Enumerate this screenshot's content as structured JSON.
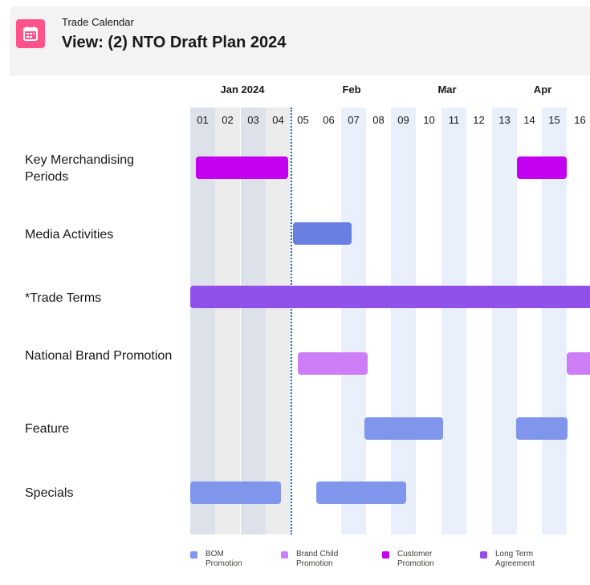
{
  "header": {
    "eyebrow": "Trade Calendar",
    "title": "View: (2) NTO Draft Plan 2024",
    "icon": "calendar-icon"
  },
  "timeline": {
    "months": [
      "Jan 2024",
      "Feb",
      "Mar",
      "Apr"
    ],
    "weeks": [
      "01",
      "02",
      "03",
      "04",
      "05",
      "06",
      "07",
      "08",
      "09",
      "10",
      "11",
      "12",
      "13",
      "14",
      "15",
      "16"
    ]
  },
  "rows": [
    {
      "label": "Key Merchandising Periods"
    },
    {
      "label": "Media Activities"
    },
    {
      "label": "*Trade Terms"
    },
    {
      "label": "National Brand Promotion"
    },
    {
      "label": "Feature"
    },
    {
      "label": "Specials"
    }
  ],
  "legend": [
    {
      "line1": "BOM",
      "line2": "Promotion",
      "color": "#7f96ec"
    },
    {
      "line1": "Brand Child",
      "line2": "Promotion",
      "color": "#cd7ef7"
    },
    {
      "line1": "Customer",
      "line2": "Promotion",
      "color": "#c400f0"
    },
    {
      "line1": "Long Term",
      "line2": "Agreement",
      "color": "#9050e9"
    }
  ],
  "colors": {
    "app_icon": "#ff538a",
    "today_line": "#0176d3",
    "bom": "#7f96ec",
    "media": "#6980e2",
    "brand_child": "#cd7ef7",
    "customer": "#c400f0",
    "long_term": "#9050e9"
  }
}
